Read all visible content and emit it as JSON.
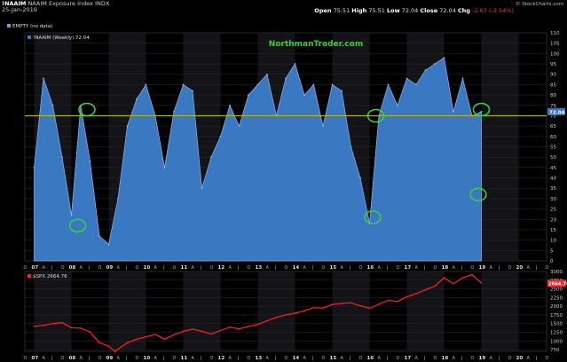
{
  "header": {
    "symbol": "!NAAIM",
    "name": "NAAIM Exposure Index",
    "exchange": "INDX",
    "date": "25-Jan-2019",
    "open_label": "Open",
    "open": "75.51",
    "high_label": "High",
    "high": "75.51",
    "low_label": "Low",
    "low": "72.04",
    "close_label": "Close",
    "close": "72.04",
    "chg_label": "Chg",
    "chg": "-2.67 (-3.54%)",
    "logo": "© StockCharts.com"
  },
  "colors": {
    "naaim_fill": "#3a78c2",
    "naaim_stroke": "#8fb7ea",
    "spx_line": "#ff2020",
    "threshold": "#b5b51a",
    "circle": "#35d33e",
    "watermark": "#2dd42d",
    "band_dark": "#000000",
    "band_light": "#141418"
  },
  "chart_data": [
    {
      "type": "area",
      "legend": [
        "!NAAIM (Weekly) 72.04",
        "EMPTY (no data)"
      ],
      "watermark": "NorthmanTrader.com",
      "ylim": [
        0,
        110
      ],
      "yticks": [
        0,
        5,
        10,
        15,
        20,
        25,
        30,
        35,
        40,
        45,
        50,
        55,
        60,
        65,
        70,
        75,
        80,
        85,
        90,
        95,
        100,
        105,
        110
      ],
      "threshold": 70,
      "last_value_label": "72.04",
      "x": [
        "2007-01",
        "2007-04",
        "2007-07",
        "2007-10",
        "2008-01",
        "2008-04",
        "2008-07",
        "2008-10",
        "2009-01",
        "2009-04",
        "2009-07",
        "2009-10",
        "2010-01",
        "2010-04",
        "2010-07",
        "2010-10",
        "2011-01",
        "2011-04",
        "2011-07",
        "2011-10",
        "2012-01",
        "2012-04",
        "2012-07",
        "2012-10",
        "2013-01",
        "2013-04",
        "2013-07",
        "2013-10",
        "2014-01",
        "2014-04",
        "2014-07",
        "2014-10",
        "2015-01",
        "2015-04",
        "2015-07",
        "2015-10",
        "2016-01",
        "2016-04",
        "2016-07",
        "2016-10",
        "2017-01",
        "2017-04",
        "2017-07",
        "2017-10",
        "2018-01",
        "2018-04",
        "2018-07",
        "2018-10",
        "2019-01"
      ],
      "values": [
        45,
        88,
        75,
        50,
        22,
        75,
        48,
        12,
        8,
        30,
        65,
        78,
        85,
        70,
        45,
        72,
        85,
        82,
        35,
        50,
        60,
        75,
        65,
        80,
        85,
        90,
        70,
        88,
        95,
        80,
        85,
        65,
        85,
        82,
        55,
        40,
        18,
        70,
        85,
        75,
        88,
        85,
        92,
        95,
        98,
        72,
        88,
        70,
        72
      ],
      "annotations": [
        {
          "date": "2008-03",
          "value": 17
        },
        {
          "date": "2008-06",
          "value": 73
        },
        {
          "date": "2016-02",
          "value": 21
        },
        {
          "date": "2016-03",
          "value": 70
        },
        {
          "date": "2018-12",
          "value": 32
        },
        {
          "date": "2019-01",
          "value": 73
        }
      ],
      "x_year_labels": [
        "07",
        "08",
        "09",
        "10",
        "11",
        "12",
        "13",
        "14",
        "15",
        "16",
        "17",
        "18",
        "19",
        "20"
      ],
      "x_month_labels": [
        "A",
        "J",
        "O"
      ]
    },
    {
      "type": "line",
      "legend": [
        "$SPX 2664.76"
      ],
      "ylim": [
        700,
        3000
      ],
      "yticks": [
        750,
        1000,
        1250,
        1500,
        1750,
        2000,
        2250,
        2500,
        2750,
        3000
      ],
      "last_value_label": "2664.76",
      "x": [
        "2007-01",
        "2007-04",
        "2007-07",
        "2007-10",
        "2008-01",
        "2008-04",
        "2008-07",
        "2008-10",
        "2009-01",
        "2009-03",
        "2009-07",
        "2009-10",
        "2010-01",
        "2010-04",
        "2010-07",
        "2010-10",
        "2011-01",
        "2011-04",
        "2011-07",
        "2011-10",
        "2012-01",
        "2012-04",
        "2012-07",
        "2012-10",
        "2013-01",
        "2013-04",
        "2013-07",
        "2013-10",
        "2014-01",
        "2014-04",
        "2014-07",
        "2014-10",
        "2015-01",
        "2015-04",
        "2015-07",
        "2015-10",
        "2016-01",
        "2016-04",
        "2016-07",
        "2016-10",
        "2017-01",
        "2017-04",
        "2017-07",
        "2017-10",
        "2018-01",
        "2018-04",
        "2018-07",
        "2018-10",
        "2019-01"
      ],
      "values": [
        1420,
        1450,
        1500,
        1530,
        1380,
        1370,
        1260,
        950,
        850,
        700,
        950,
        1050,
        1120,
        1190,
        1050,
        1180,
        1280,
        1340,
        1280,
        1200,
        1300,
        1400,
        1350,
        1420,
        1480,
        1580,
        1680,
        1750,
        1800,
        1870,
        1960,
        1950,
        2050,
        2080,
        2100,
        2010,
        1940,
        2060,
        2170,
        2140,
        2270,
        2360,
        2470,
        2580,
        2820,
        2650,
        2820,
        2910,
        2665
      ]
    }
  ]
}
